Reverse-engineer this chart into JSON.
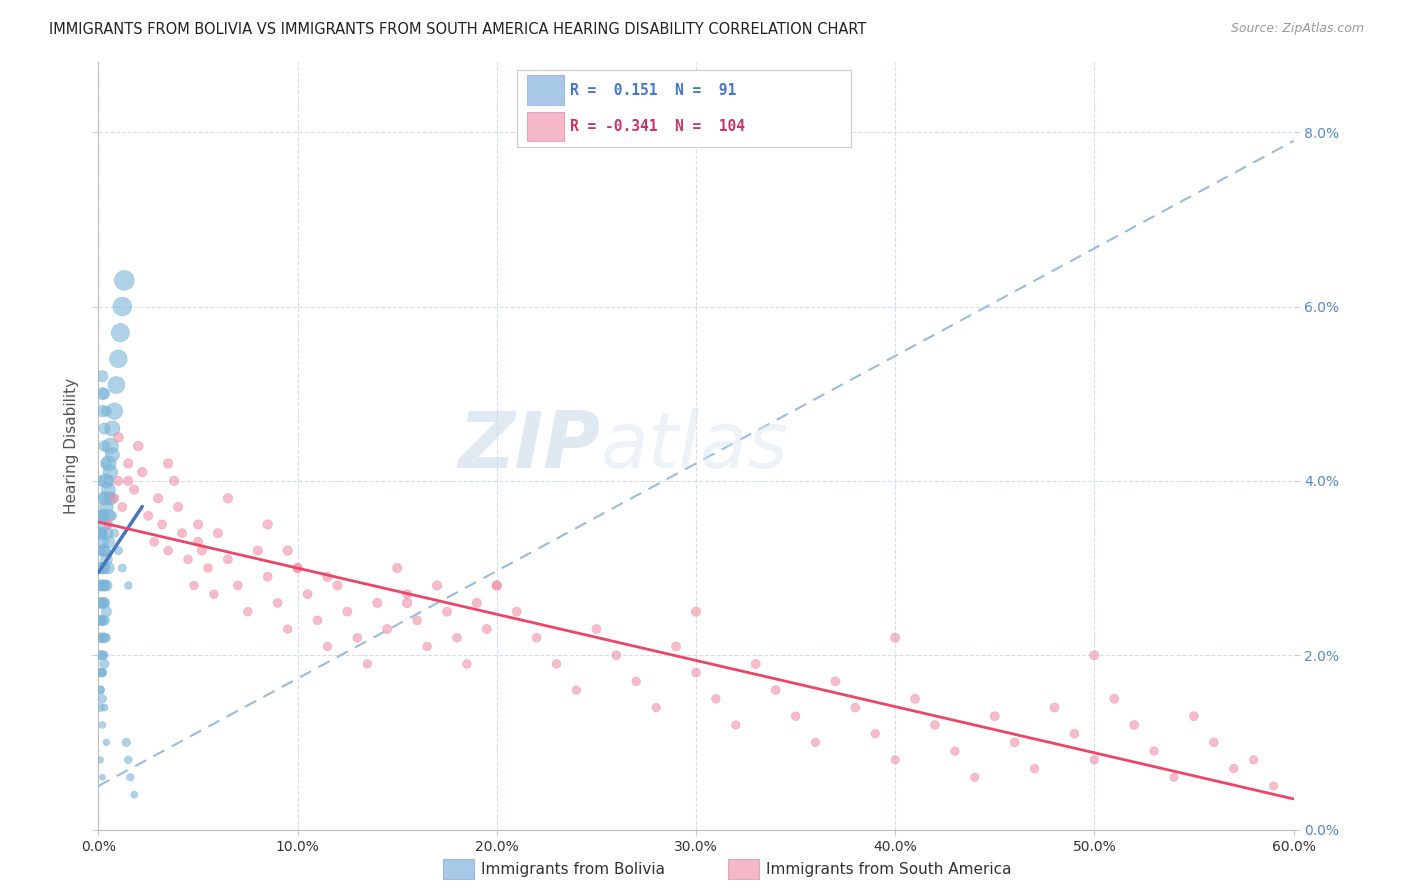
{
  "title": "IMMIGRANTS FROM BOLIVIA VS IMMIGRANTS FROM SOUTH AMERICA HEARING DISABILITY CORRELATION CHART",
  "source": "Source: ZipAtlas.com",
  "ylabel_label": "Hearing Disability",
  "xlim": [
    0.0,
    0.6
  ],
  "ylim": [
    0.0,
    0.088
  ],
  "watermark_zip": "ZIP",
  "watermark_atlas": "atlas",
  "legend_entry1": {
    "color": "#a8c8e8",
    "R": "0.151",
    "N": "91",
    "label": "Immigrants from Bolivia"
  },
  "legend_entry2": {
    "color": "#f4b8c8",
    "R": "-0.341",
    "N": "104",
    "label": "Immigrants from South America"
  },
  "scatter_blue_color": "#7ab4d8",
  "scatter_pink_color": "#f090a8",
  "trendline_blue_color": "#4477bb",
  "trendline_pink_color": "#ee4466",
  "trendline_dash_color": "#99bbdd",
  "blue_R": 0.151,
  "pink_R": -0.341,
  "blue_N": 91,
  "pink_N": 104,
  "blue_scatter_x": [
    0.001,
    0.001,
    0.001,
    0.001,
    0.001,
    0.001,
    0.001,
    0.001,
    0.001,
    0.001,
    0.002,
    0.002,
    0.002,
    0.002,
    0.002,
    0.002,
    0.002,
    0.002,
    0.002,
    0.002,
    0.003,
    0.003,
    0.003,
    0.003,
    0.003,
    0.003,
    0.003,
    0.003,
    0.003,
    0.004,
    0.004,
    0.004,
    0.004,
    0.004,
    0.004,
    0.005,
    0.005,
    0.005,
    0.005,
    0.005,
    0.006,
    0.006,
    0.006,
    0.007,
    0.007,
    0.008,
    0.009,
    0.01,
    0.011,
    0.012,
    0.013,
    0.014,
    0.015,
    0.016,
    0.018,
    0.002,
    0.002,
    0.003,
    0.003,
    0.004,
    0.005,
    0.006,
    0.007,
    0.008,
    0.01,
    0.012,
    0.015,
    0.002,
    0.003,
    0.004,
    0.001,
    0.002,
    0.003,
    0.002,
    0.001,
    0.003,
    0.002,
    0.004,
    0.003,
    0.002,
    0.001,
    0.003,
    0.002,
    0.004,
    0.001,
    0.002,
    0.003,
    0.001,
    0.002,
    0.003,
    0.001
  ],
  "blue_scatter_y": [
    0.034,
    0.03,
    0.028,
    0.026,
    0.024,
    0.022,
    0.02,
    0.018,
    0.016,
    0.014,
    0.036,
    0.033,
    0.03,
    0.028,
    0.026,
    0.024,
    0.022,
    0.02,
    0.018,
    0.015,
    0.038,
    0.035,
    0.032,
    0.03,
    0.028,
    0.026,
    0.024,
    0.022,
    0.019,
    0.04,
    0.037,
    0.034,
    0.031,
    0.028,
    0.025,
    0.042,
    0.039,
    0.036,
    0.033,
    0.03,
    0.044,
    0.041,
    0.038,
    0.046,
    0.043,
    0.048,
    0.051,
    0.054,
    0.057,
    0.06,
    0.063,
    0.01,
    0.008,
    0.006,
    0.004,
    0.05,
    0.048,
    0.046,
    0.044,
    0.042,
    0.04,
    0.038,
    0.036,
    0.034,
    0.032,
    0.03,
    0.028,
    0.052,
    0.05,
    0.048,
    0.032,
    0.03,
    0.028,
    0.034,
    0.036,
    0.026,
    0.024,
    0.022,
    0.02,
    0.018,
    0.016,
    0.014,
    0.012,
    0.01,
    0.008,
    0.006,
    0.032,
    0.034,
    0.036,
    0.038,
    0.04
  ],
  "blue_sizes": [
    80,
    70,
    65,
    60,
    55,
    50,
    45,
    40,
    38,
    35,
    90,
    80,
    70,
    65,
    60,
    55,
    50,
    45,
    40,
    35,
    100,
    90,
    80,
    70,
    65,
    60,
    55,
    50,
    45,
    110,
    95,
    85,
    75,
    65,
    55,
    120,
    100,
    90,
    80,
    70,
    130,
    110,
    95,
    120,
    105,
    140,
    150,
    160,
    170,
    180,
    200,
    35,
    30,
    28,
    25,
    75,
    70,
    65,
    60,
    55,
    50,
    45,
    40,
    38,
    35,
    33,
    30,
    65,
    60,
    55,
    50,
    45,
    40,
    55,
    60,
    38,
    36,
    34,
    32,
    30,
    28,
    26,
    24,
    22,
    20,
    18,
    50,
    52,
    54,
    56,
    58
  ],
  "pink_scatter_x": [
    0.005,
    0.008,
    0.01,
    0.012,
    0.015,
    0.018,
    0.02,
    0.022,
    0.025,
    0.028,
    0.03,
    0.032,
    0.035,
    0.038,
    0.04,
    0.042,
    0.045,
    0.048,
    0.05,
    0.052,
    0.055,
    0.058,
    0.06,
    0.065,
    0.07,
    0.075,
    0.08,
    0.085,
    0.09,
    0.095,
    0.1,
    0.105,
    0.11,
    0.115,
    0.12,
    0.125,
    0.13,
    0.135,
    0.14,
    0.145,
    0.15,
    0.155,
    0.16,
    0.165,
    0.17,
    0.175,
    0.18,
    0.185,
    0.19,
    0.195,
    0.2,
    0.21,
    0.22,
    0.23,
    0.24,
    0.25,
    0.26,
    0.27,
    0.28,
    0.29,
    0.3,
    0.31,
    0.32,
    0.33,
    0.34,
    0.35,
    0.36,
    0.37,
    0.38,
    0.39,
    0.4,
    0.41,
    0.42,
    0.43,
    0.44,
    0.45,
    0.46,
    0.47,
    0.48,
    0.49,
    0.5,
    0.51,
    0.52,
    0.53,
    0.54,
    0.55,
    0.56,
    0.57,
    0.58,
    0.59,
    0.01,
    0.05,
    0.1,
    0.2,
    0.3,
    0.4,
    0.5,
    0.015,
    0.035,
    0.065,
    0.085,
    0.095,
    0.115,
    0.155
  ],
  "pink_scatter_y": [
    0.035,
    0.038,
    0.04,
    0.037,
    0.042,
    0.039,
    0.044,
    0.041,
    0.036,
    0.033,
    0.038,
    0.035,
    0.032,
    0.04,
    0.037,
    0.034,
    0.031,
    0.028,
    0.035,
    0.032,
    0.03,
    0.027,
    0.034,
    0.031,
    0.028,
    0.025,
    0.032,
    0.029,
    0.026,
    0.023,
    0.03,
    0.027,
    0.024,
    0.021,
    0.028,
    0.025,
    0.022,
    0.019,
    0.026,
    0.023,
    0.03,
    0.027,
    0.024,
    0.021,
    0.028,
    0.025,
    0.022,
    0.019,
    0.026,
    0.023,
    0.028,
    0.025,
    0.022,
    0.019,
    0.016,
    0.023,
    0.02,
    0.017,
    0.014,
    0.021,
    0.018,
    0.015,
    0.012,
    0.019,
    0.016,
    0.013,
    0.01,
    0.017,
    0.014,
    0.011,
    0.008,
    0.015,
    0.012,
    0.009,
    0.006,
    0.013,
    0.01,
    0.007,
    0.014,
    0.011,
    0.008,
    0.015,
    0.012,
    0.009,
    0.006,
    0.013,
    0.01,
    0.007,
    0.008,
    0.005,
    0.045,
    0.033,
    0.03,
    0.028,
    0.025,
    0.022,
    0.02,
    0.04,
    0.042,
    0.038,
    0.035,
    0.032,
    0.029,
    0.026
  ],
  "pink_sizes": [
    40,
    42,
    44,
    42,
    46,
    44,
    48,
    46,
    42,
    40,
    44,
    42,
    40,
    46,
    44,
    42,
    40,
    38,
    44,
    42,
    40,
    38,
    44,
    42,
    40,
    38,
    44,
    42,
    40,
    38,
    44,
    42,
    40,
    38,
    44,
    42,
    40,
    38,
    44,
    42,
    44,
    42,
    40,
    38,
    44,
    42,
    40,
    38,
    44,
    42,
    44,
    42,
    40,
    38,
    36,
    42,
    40,
    38,
    36,
    42,
    40,
    38,
    36,
    42,
    40,
    38,
    36,
    42,
    40,
    38,
    36,
    42,
    40,
    38,
    36,
    42,
    40,
    38,
    42,
    40,
    38,
    42,
    40,
    38,
    36,
    42,
    40,
    38,
    36,
    34,
    50,
    44,
    44,
    44,
    44,
    44,
    44,
    46,
    46,
    46,
    46,
    46,
    46,
    46
  ]
}
